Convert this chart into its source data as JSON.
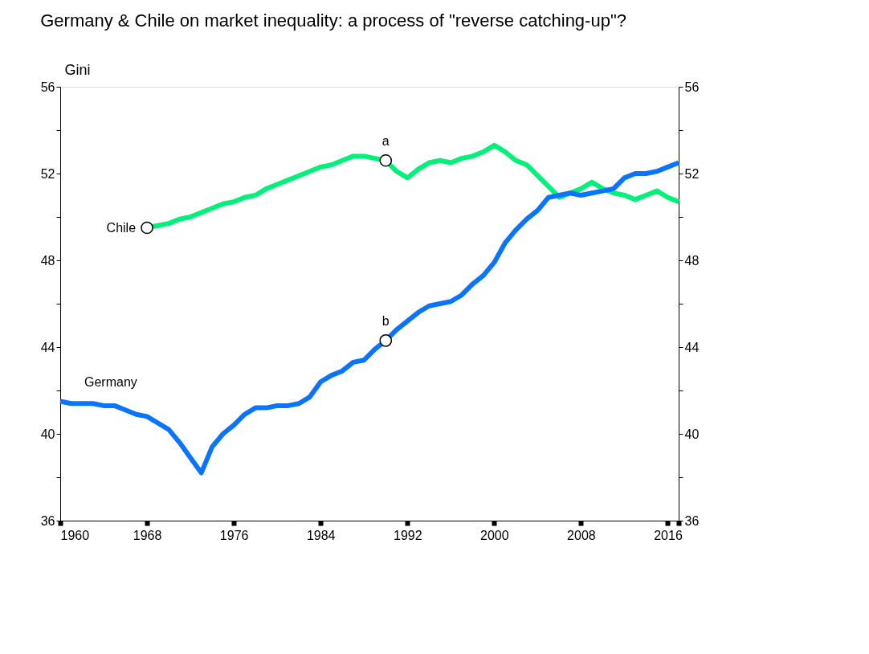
{
  "chart_data": {
    "type": "line",
    "title": "Germany & Chile on market inequality: a process of \"reverse catching-up\"?",
    "ylabel": "Gini",
    "xlim": [
      1960,
      2017
    ],
    "xticks": [
      1960,
      1968,
      1976,
      1984,
      1992,
      2000,
      2008,
      2016,
      {
        "value": 2017,
        "label": null
      }
    ],
    "ylim": [
      36,
      56
    ],
    "yticks": [
      36,
      {
        "value": 38,
        "label": null
      },
      40,
      {
        "value": 42,
        "label": null
      },
      44,
      {
        "value": 46,
        "label": null
      },
      48,
      {
        "value": 50,
        "label": null
      },
      52,
      {
        "value": 54,
        "label": null
      },
      56
    ],
    "y2lim": [
      36,
      56
    ],
    "y2ticks": [
      36,
      {
        "value": 38,
        "label": null
      },
      40,
      {
        "value": 42,
        "label": null
      },
      44,
      {
        "value": 46,
        "label": null
      },
      48,
      {
        "value": 50,
        "label": null
      },
      52,
      {
        "value": 54,
        "label": null
      },
      56
    ],
    "grid": false,
    "legend": false,
    "line_style": "solid",
    "series": [
      {
        "name": "Chile",
        "color": "#00f07a",
        "x": [
          1968,
          1969,
          1970,
          1971,
          1972,
          1973,
          1974,
          1975,
          1976,
          1977,
          1978,
          1979,
          1980,
          1981,
          1982,
          1983,
          1984,
          1985,
          1986,
          1987,
          1988,
          1989,
          1990,
          1991,
          1992,
          1993,
          1994,
          1995,
          1996,
          1997,
          1998,
          1999,
          2000,
          2001,
          2002,
          2003,
          2004,
          2005,
          2006,
          2007,
          2008,
          2009,
          2010,
          2011,
          2012,
          2013,
          2014,
          2015,
          2016,
          2017
        ],
        "values": [
          49.5,
          49.6,
          49.7,
          49.9,
          50.0,
          50.2,
          50.4,
          50.6,
          50.7,
          50.9,
          51.0,
          51.3,
          51.5,
          51.7,
          51.9,
          52.1,
          52.3,
          52.4,
          52.6,
          52.8,
          52.8,
          52.7,
          52.6,
          52.1,
          51.8,
          52.2,
          52.5,
          52.6,
          52.5,
          52.7,
          52.8,
          53.0,
          53.3,
          53.0,
          52.6,
          52.4,
          51.9,
          51.4,
          50.9,
          51.1,
          51.3,
          51.6,
          51.3,
          51.1,
          51.0,
          50.8,
          51.0,
          51.2,
          50.9,
          50.7
        ]
      },
      {
        "name": "Germany",
        "color": "#0a74ff",
        "x": [
          1960,
          1961,
          1962,
          1963,
          1964,
          1965,
          1966,
          1967,
          1968,
          1969,
          1970,
          1971,
          1972,
          1973,
          1974,
          1975,
          1976,
          1977,
          1978,
          1979,
          1980,
          1981,
          1982,
          1983,
          1984,
          1985,
          1986,
          1987,
          1988,
          1989,
          1990,
          1991,
          1992,
          1993,
          1994,
          1995,
          1996,
          1997,
          1998,
          1999,
          2000,
          2001,
          2002,
          2003,
          2004,
          2005,
          2006,
          2007,
          2008,
          2009,
          2010,
          2011,
          2012,
          2013,
          2014,
          2015,
          2016,
          2017
        ],
        "values": [
          41.5,
          41.4,
          41.4,
          41.4,
          41.3,
          41.3,
          41.1,
          40.9,
          40.8,
          40.5,
          40.2,
          39.6,
          38.9,
          38.2,
          39.4,
          40.0,
          40.4,
          40.9,
          41.2,
          41.2,
          41.3,
          41.3,
          41.4,
          41.7,
          42.4,
          42.7,
          42.9,
          43.3,
          43.4,
          43.9,
          44.3,
          44.8,
          45.2,
          45.6,
          45.9,
          46.0,
          46.1,
          46.4,
          46.9,
          47.3,
          47.9,
          48.8,
          49.4,
          49.9,
          50.3,
          50.9,
          51.0,
          51.1,
          51.0,
          51.1,
          51.2,
          51.3,
          51.8,
          52.0,
          52.0,
          52.1,
          52.3,
          52.5
        ]
      }
    ],
    "annotations": [
      {
        "text": "a",
        "x": 1990,
        "y": 52.6
      },
      {
        "text": "b",
        "x": 1990,
        "y": 44.3
      }
    ]
  }
}
